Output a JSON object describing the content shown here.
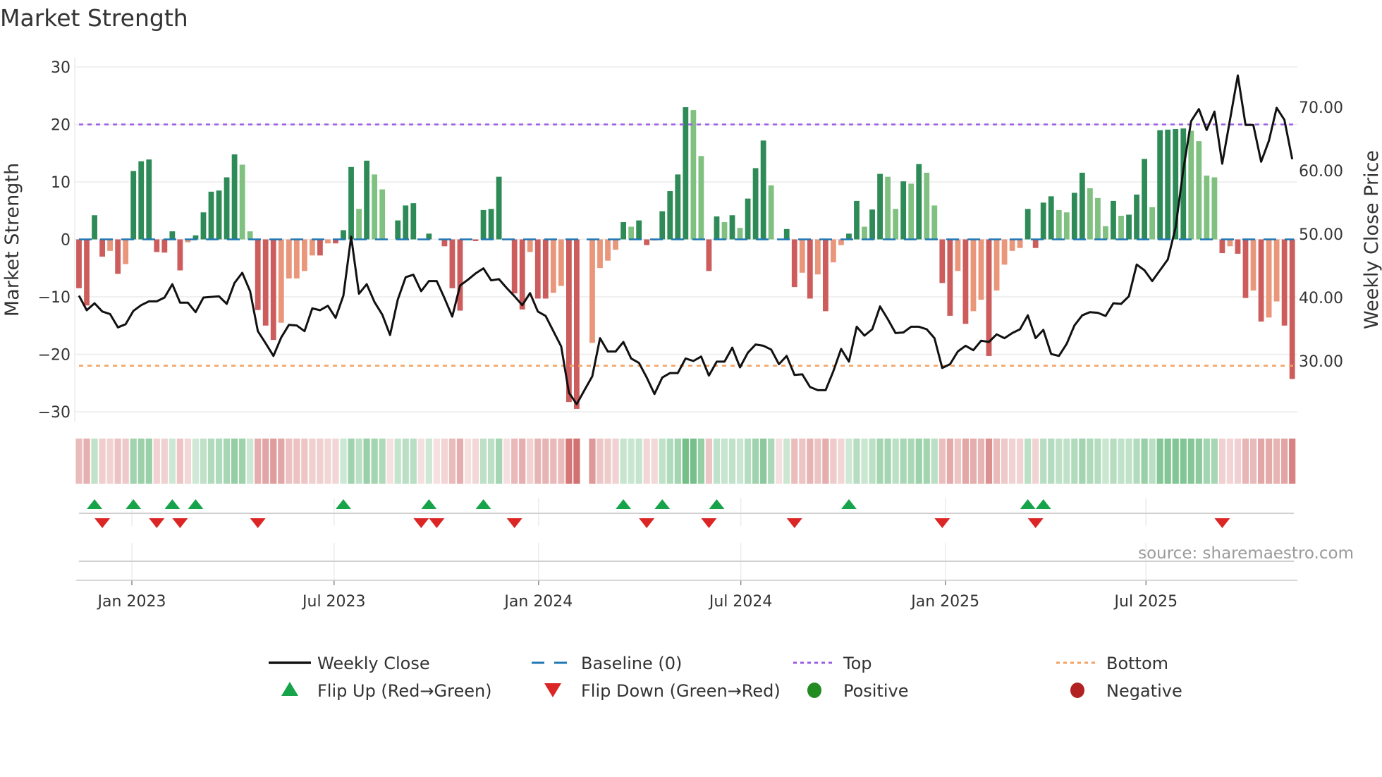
{
  "chart_data": {
    "type": "bar",
    "title": "Market Strength",
    "ylabel": "Market Strength",
    "y2label": "Weekly Close Price",
    "ylim": [
      -31.5,
      31
    ],
    "y2lim": [
      22.6,
      79.4
    ],
    "yticks": [
      30,
      20,
      10,
      0,
      -10,
      -20,
      -30
    ],
    "ytick_labels": [
      "30",
      "20",
      "10",
      "0",
      "−10",
      "−20",
      "−30"
    ],
    "y2ticks": [
      70,
      60,
      50,
      40,
      30
    ],
    "y2tick_labels": [
      "70.00",
      "60.00",
      "50.00",
      "40.00",
      "30.00"
    ],
    "xtick_labels": [
      "Jan 2023",
      "Jul 2023",
      "Jan 2024",
      "Jul 2024",
      "Jan 2025",
      "Jul 2025"
    ],
    "xtick_week_index": [
      6.8,
      32.8,
      59.1,
      85.1,
      111.4,
      137.2
    ],
    "grid": true,
    "top_level": 20,
    "bottom_level": -22,
    "source": "source: sharemaestro.com",
    "strength": [
      -8.5,
      -11.5,
      4.2,
      -3,
      -2,
      -6,
      -4.3,
      11.9,
      13.6,
      13.9,
      -2.2,
      -2.3,
      1.4,
      -5.4,
      -0.5,
      0.7,
      4.7,
      8.3,
      8.5,
      10.8,
      14.8,
      13.0,
      1.4,
      -12.3,
      -15,
      -17.5,
      -14.5,
      -6.8,
      -6.8,
      -5.5,
      -2.8,
      -2.8,
      -0.7,
      -0.7,
      1.6,
      12.6,
      5.3,
      13.7,
      11.3,
      8.7,
      0,
      3.3,
      5.9,
      6.3,
      0,
      1.0,
      0,
      -1.2,
      -8.5,
      -12.4,
      0,
      -0.3,
      5.1,
      5.3,
      10.9,
      0,
      -9.4,
      -12.2,
      -2.2,
      -10.3,
      -10.3,
      -9.3,
      -8.1,
      -28.3,
      -29.5,
      0,
      -18,
      -5,
      -3.7,
      -1.8,
      3.0,
      2.2,
      3.3,
      -1.0,
      -0.2,
      4.9,
      8.4,
      11.3,
      23.0,
      22.5,
      14.5,
      -5.5,
      4.0,
      3.0,
      4.2,
      2.0,
      7.1,
      12.4,
      17.2,
      9.4,
      0,
      1.8,
      -8.3,
      -5.8,
      -10.3,
      -6.1,
      -12.5,
      -4,
      -1,
      1,
      6.7,
      2.2,
      5.2,
      11.4,
      10.9,
      5.3,
      10.1,
      9.7,
      13.1,
      11.6,
      5.9,
      -7.6,
      -13.3,
      -5.5,
      -14.7,
      -12.5,
      -10.5,
      -20.3,
      -8.9,
      -4.4,
      -2,
      -1.5,
      5.3,
      -1.5,
      6.4,
      7.5,
      5.1,
      4.7,
      8.1,
      11.6,
      8.9,
      7.2,
      2.3,
      6.7,
      4.1,
      4.3,
      7.8,
      14.0,
      5.6,
      19.0,
      19.1,
      19.2,
      19.3,
      18.9,
      17.1,
      11.1,
      10.8,
      -2.4,
      -1.2,
      -2.5,
      -10.2,
      -8.9,
      -14.3,
      -13.6,
      -10.8,
      -15,
      -24.3
    ],
    "shade": [
      "r",
      "r",
      "g",
      "r",
      "o",
      "r",
      "o",
      "g",
      "g",
      "g",
      "r",
      "r",
      "g",
      "r",
      "o",
      "g",
      "g",
      "g",
      "g",
      "g",
      "g",
      "l",
      "l",
      "r",
      "r",
      "r",
      "o",
      "o",
      "o",
      "o",
      "o",
      "r",
      "o",
      "r",
      "g",
      "g",
      "l",
      "g",
      "l",
      "l",
      "z",
      "g",
      "g",
      "g",
      "z",
      "g",
      "z",
      "r",
      "r",
      "r",
      "z",
      "r",
      "g",
      "g",
      "g",
      "z",
      "r",
      "r",
      "o",
      "r",
      "r",
      "o",
      "o",
      "r",
      "r",
      "z",
      "o",
      "o",
      "o",
      "o",
      "g",
      "l",
      "g",
      "r",
      "o",
      "g",
      "g",
      "g",
      "g",
      "l",
      "l",
      "r",
      "g",
      "l",
      "g",
      "l",
      "g",
      "g",
      "g",
      "l",
      "z",
      "g",
      "r",
      "o",
      "r",
      "o",
      "r",
      "o",
      "o",
      "g",
      "g",
      "l",
      "g",
      "g",
      "l",
      "l",
      "g",
      "l",
      "g",
      "l",
      "l",
      "r",
      "r",
      "o",
      "r",
      "o",
      "o",
      "r",
      "o",
      "o",
      "o",
      "o",
      "g",
      "r",
      "g",
      "g",
      "l",
      "l",
      "g",
      "g",
      "l",
      "l",
      "l",
      "g",
      "l",
      "g",
      "g",
      "g",
      "l",
      "g",
      "g",
      "g",
      "g",
      "l",
      "l",
      "l",
      "l",
      "r",
      "o",
      "r",
      "r",
      "o",
      "r",
      "o",
      "o",
      "r",
      "r"
    ],
    "weekly_close": [
      40.3,
      38.0,
      39.1,
      37.8,
      37.4,
      35.3,
      35.8,
      37.9,
      38.8,
      39.4,
      39.4,
      40.0,
      42.1,
      39.2,
      39.2,
      37.7,
      40.0,
      40.1,
      40.2,
      39.0,
      42.3,
      43.9,
      41.0,
      34.7,
      32.8,
      30.8,
      33.7,
      35.7,
      35.6,
      34.7,
      38.3,
      38.0,
      38.7,
      36.8,
      40.3,
      49.6,
      40.6,
      42.1,
      39.3,
      37.3,
      34.1,
      39.7,
      43.2,
      43.6,
      41.0,
      42.6,
      42.6,
      39.9,
      37.0,
      41.9,
      42.8,
      43.8,
      44.6,
      42.7,
      42.9,
      41.5,
      40.2,
      38.8,
      40.7,
      37.8,
      37.1,
      34.7,
      32.3,
      25.0,
      23.2,
      25.4,
      27.6,
      33.6,
      31.5,
      31.5,
      33.0,
      30.4,
      29.7,
      27.4,
      24.8,
      27.4,
      28.1,
      28.1,
      30.4,
      30.0,
      30.7,
      27.7,
      29.9,
      29.9,
      32.1,
      29.0,
      31.3,
      32.6,
      32.4,
      31.8,
      29.5,
      30.8,
      27.8,
      27.9,
      25.9,
      25.4,
      25.4,
      28.4,
      31.9,
      29.9,
      35.4,
      34.0,
      35.0,
      38.6,
      36.6,
      34.4,
      34.5,
      35.4,
      35.4,
      35.0,
      33.6,
      28.9,
      29.5,
      31.5,
      32.4,
      31.7,
      33.2,
      33.0,
      34.2,
      33.6,
      34.4,
      35.0,
      37.2,
      33.6,
      34.9,
      31.1,
      30.8,
      32.7,
      35.6,
      37.2,
      37.7,
      37.6,
      37.1,
      39.1,
      39.0,
      40.2,
      45.2,
      44.3,
      42.6,
      44.3,
      46.0,
      51.0,
      60.2,
      67.8,
      69.7,
      66.4,
      69.3,
      61.1,
      68.0,
      75.0,
      67.2,
      67.2,
      61.4,
      64.7,
      69.9,
      68.0,
      61.8
    ],
    "flip_up_weeks": [
      2,
      7,
      12,
      15,
      34,
      45,
      52,
      70,
      75,
      82,
      99,
      122,
      124
    ],
    "flip_down_weeks": [
      3,
      10,
      13,
      23,
      44,
      46,
      56,
      73,
      81,
      92,
      111,
      123,
      147
    ],
    "strip_gap_weeks": [
      65
    ],
    "legend": {
      "placement": "bottom",
      "entries": [
        {
          "label": "Weekly Close",
          "kind": "line"
        },
        {
          "label": "Baseline (0)",
          "kind": "dash"
        },
        {
          "label": "Top",
          "kind": "dot-top"
        },
        {
          "label": "Bottom",
          "kind": "dot-bottom"
        },
        {
          "label": "Flip Up (Red→Green)",
          "kind": "tri-up"
        },
        {
          "label": "Flip Down (Green→Red)",
          "kind": "tri-down"
        },
        {
          "label": "Positive",
          "kind": "dot-pos"
        },
        {
          "label": "Negative",
          "kind": "dot-neg"
        }
      ]
    },
    "colors": {
      "strong_pos": "#2e8b57",
      "weak_pos": "#80c080",
      "strong_neg": "#cd5c5c",
      "weak_neg": "#e9967a",
      "baseline": "#1f77b4",
      "top": "#9b5de5",
      "bottom": "#f4a261",
      "close": "#111111",
      "flip_up": "#16a34a",
      "flip_down": "#dc2626",
      "positive": "#228b22",
      "negative": "#b22222"
    }
  }
}
